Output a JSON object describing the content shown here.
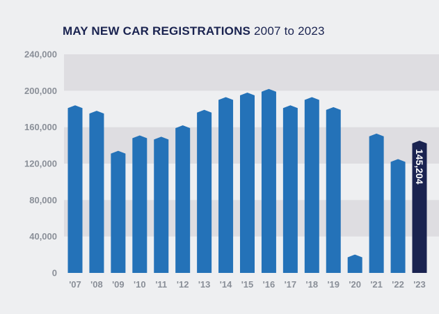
{
  "chart_data": {
    "type": "bar",
    "title": "MAY NEW CAR REGISTRATIONS",
    "subtitle": "2007 to 2023",
    "xlabel": "",
    "ylabel": "",
    "ylim": [
      0,
      240000
    ],
    "yticks": [
      0,
      40000,
      80000,
      120000,
      160000,
      200000,
      240000
    ],
    "ytick_labels": [
      "0",
      "40,000",
      "80,000",
      "120,000",
      "160,000",
      "200,000",
      "240,000"
    ],
    "categories": [
      "'07",
      "'08",
      "'09",
      "'10",
      "'11",
      "'12",
      "'13",
      "'14",
      "'15",
      "'16",
      "'17",
      "'18",
      "'19",
      "'20",
      "'21",
      "'22",
      "'23"
    ],
    "values": [
      184000,
      178000,
      134000,
      151000,
      149500,
      162000,
      179000,
      193000,
      198000,
      202000,
      184000,
      193000,
      182000,
      20200,
      153000,
      125000,
      145204
    ],
    "highlight_index": 16,
    "data_labels": [
      {
        "index": 16,
        "text": "145,204"
      }
    ],
    "colors": {
      "bar": "#2472b8",
      "highlight": "#1a2350",
      "band": "#dedde1",
      "background": "#eeeff1"
    }
  }
}
